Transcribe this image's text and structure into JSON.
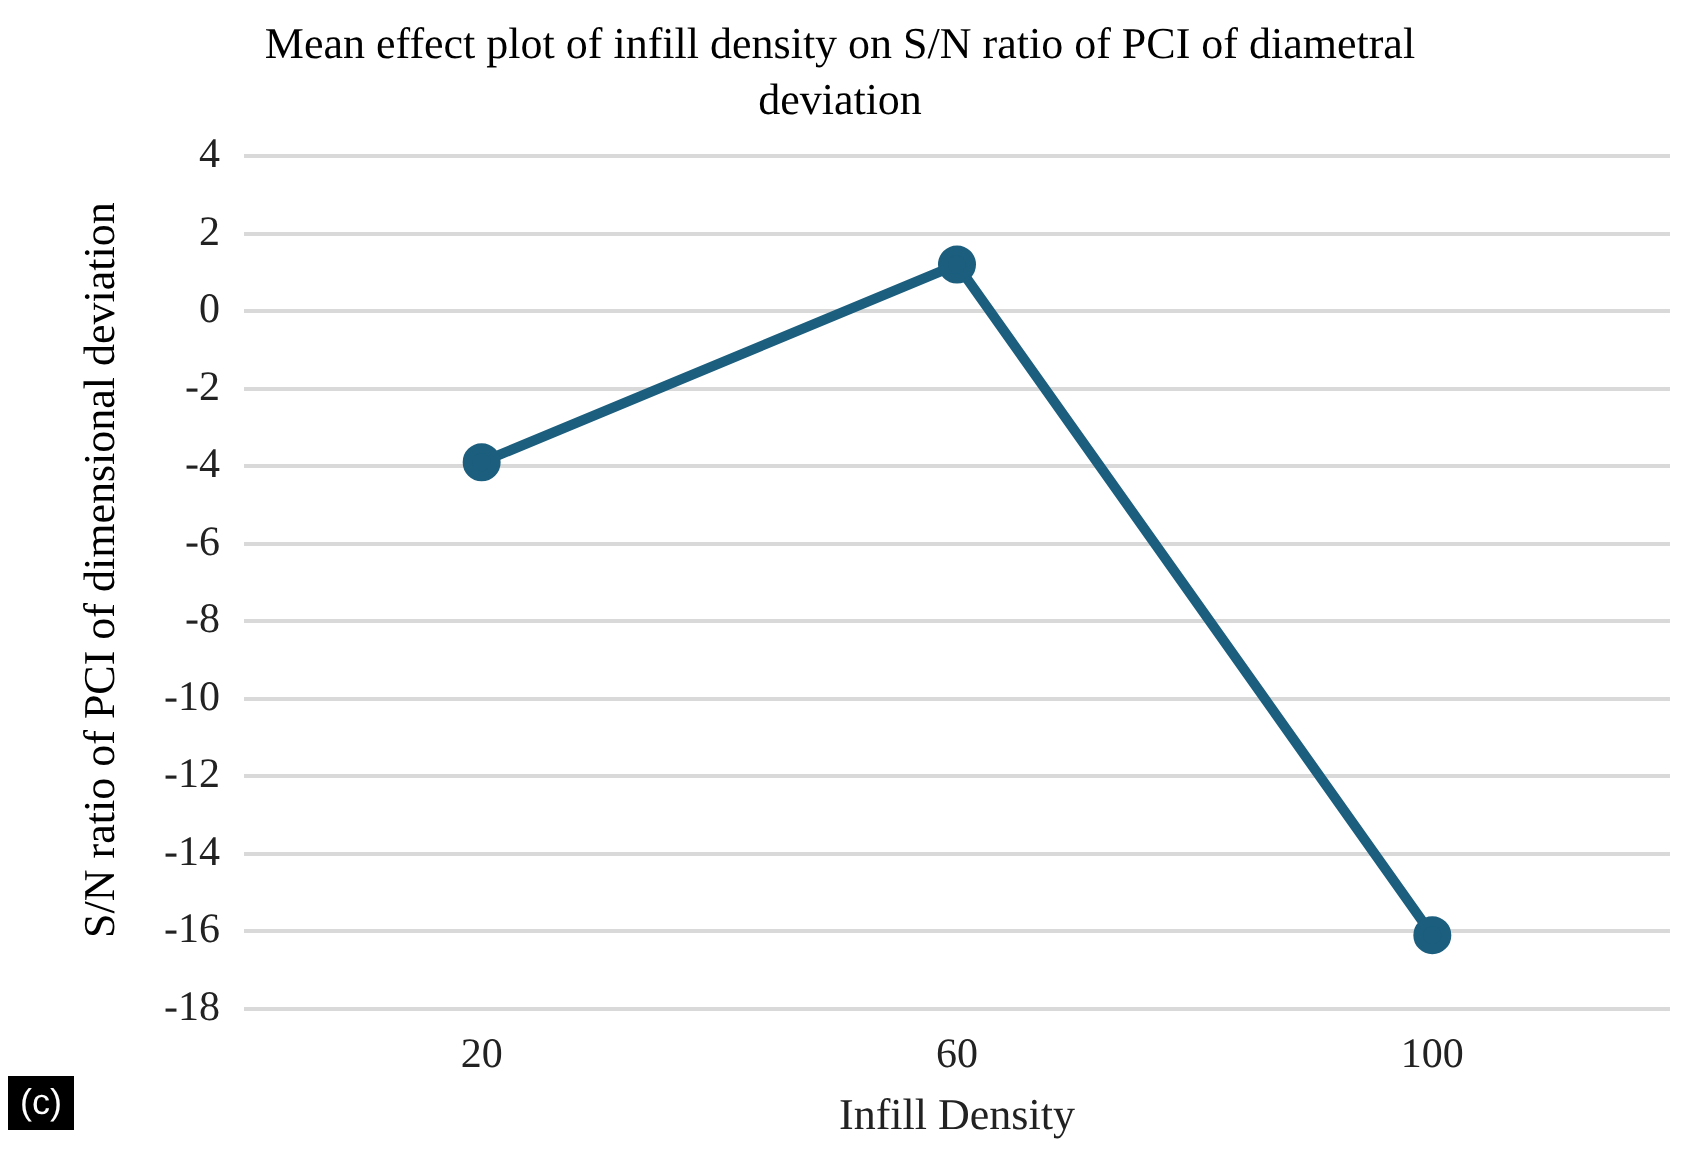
{
  "chart_data": {
    "type": "line",
    "title": "Mean effect plot of infill density on S/N ratio of PCI of diametral deviation",
    "xlabel": "Infill Density",
    "ylabel": "S/N ratio of PCI of dimensional deviation",
    "categories": [
      "20",
      "60",
      "100"
    ],
    "series": [
      {
        "color": "#1b5e7e",
        "values": [
          -3.9,
          1.2,
          -16.1
        ]
      }
    ],
    "ylim": [
      -18,
      4
    ],
    "yticks": [
      -18,
      -16,
      -14,
      -12,
      -10,
      -8,
      -6,
      -4,
      -2,
      0,
      2,
      4
    ],
    "grid": "y",
    "legend": false,
    "marker": "circle",
    "line_style": "solid",
    "annotations": [
      "(c)"
    ]
  }
}
